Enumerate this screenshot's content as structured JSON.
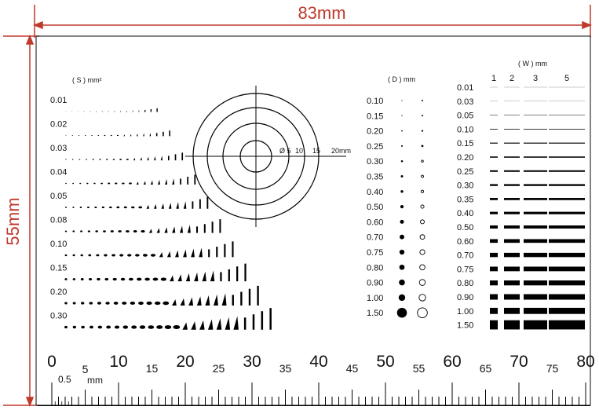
{
  "dimensions": {
    "width_label": "83mm",
    "height_label": "55mm",
    "dim_color": "#c0392b"
  },
  "area_section": {
    "header": "( S ) mm²",
    "rows": [
      "0.01",
      "0.02",
      "0.03",
      "0.04",
      "0.05",
      "0.08",
      "0.10",
      "0.15",
      "0.20",
      "0.30"
    ]
  },
  "circle_target": {
    "labels": [
      "Ø 5",
      "10",
      "15",
      "20mm"
    ]
  },
  "diameter_section": {
    "header": "( D ) mm",
    "rows": [
      "0.10",
      "0.15",
      "0.20",
      "0.25",
      "0.30",
      "0.35",
      "0.40",
      "0.50",
      "0.60",
      "0.70",
      "0.75",
      "0.80",
      "0.90",
      "1.00",
      "1.50"
    ]
  },
  "width_section": {
    "header": "( W ) mm",
    "columns": [
      "1",
      "2",
      "3",
      "5"
    ],
    "rows": [
      "0.01",
      "0.03",
      "0.05",
      "0.10",
      "0.15",
      "0.20",
      "0.25",
      "0.30",
      "0.35",
      "0.40",
      "0.50",
      "0.60",
      "0.70",
      "0.75",
      "0.80",
      "0.90",
      "1.00",
      "1.50"
    ]
  },
  "ruler": {
    "major_labels": [
      "0",
      "10",
      "20",
      "30",
      "40",
      "50",
      "60",
      "70",
      "80"
    ],
    "minor_labels": [
      "5",
      "15",
      "25",
      "35",
      "45",
      "55",
      "65",
      "75"
    ],
    "half_label": "0.5",
    "unit": "mm"
  }
}
